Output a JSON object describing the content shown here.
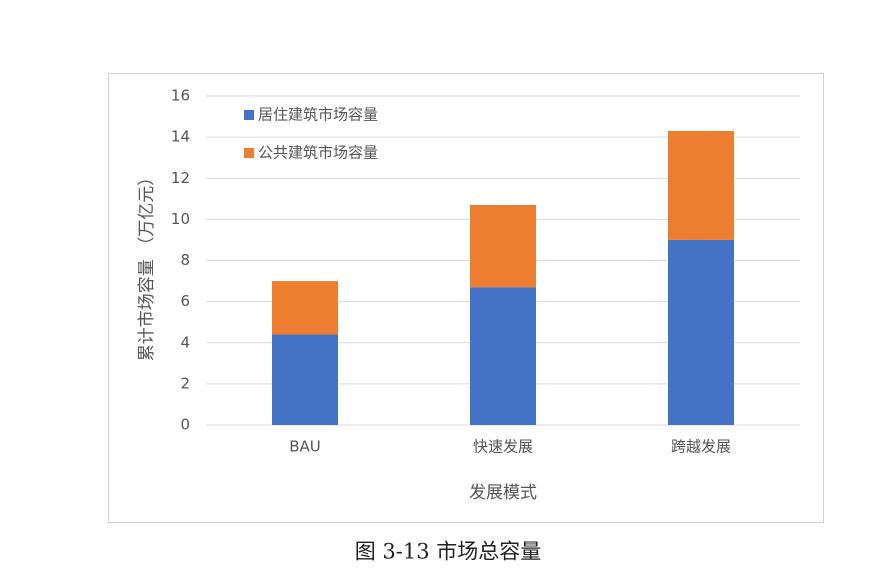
{
  "chart_data": {
    "type": "stacked_bar",
    "ylabel": "累计市场容量 （万亿元）",
    "xlabel": "发展模式",
    "categories": [
      "BAU",
      "快速发展",
      "跨越发展"
    ],
    "series": [
      {
        "name": "居住建筑市场容量",
        "color": "#4472c4",
        "values": [
          4.4,
          6.7,
          9.0
        ]
      },
      {
        "name": "公共建筑市场容量",
        "color": "#ed7d31",
        "values": [
          2.6,
          4.0,
          5.3
        ]
      }
    ],
    "ylim": [
      0,
      16
    ],
    "yticks": [
      0,
      2,
      4,
      6,
      8,
      10,
      12,
      14,
      16
    ],
    "grid": true,
    "legend": "top-left"
  },
  "caption": "图 3-13 市场总容量"
}
